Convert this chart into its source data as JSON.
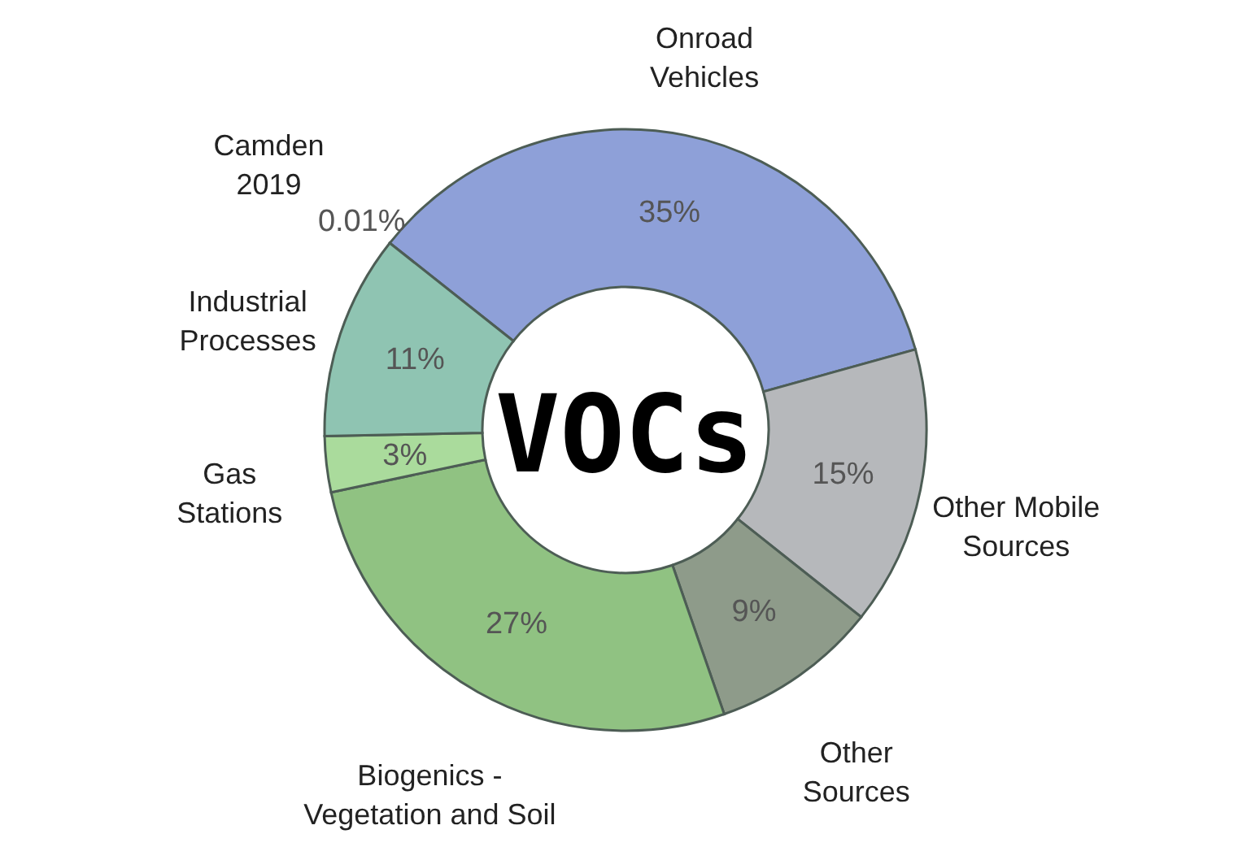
{
  "chart_data": {
    "type": "donut",
    "categories": [
      "Camden 2019",
      "Onroad Vehicles",
      "Other Mobile Sources",
      "Other Sources",
      "Biogenics - Vegetation and Soil",
      "Gas Stations",
      "Industrial Processes"
    ],
    "values": [
      0.01,
      35,
      15,
      9,
      27,
      3,
      11
    ],
    "value_labels": [
      "0.01%",
      "35%",
      "15%",
      "9%",
      "27%",
      "3%",
      "11%"
    ],
    "colors": [
      "#2f4f6f",
      "#8ea0d8",
      "#b6b8bb",
      "#8e9b8a",
      "#90c282",
      "#aadb9c",
      "#8fc4b2"
    ],
    "annotations": [
      "VOCs"
    ]
  }
}
